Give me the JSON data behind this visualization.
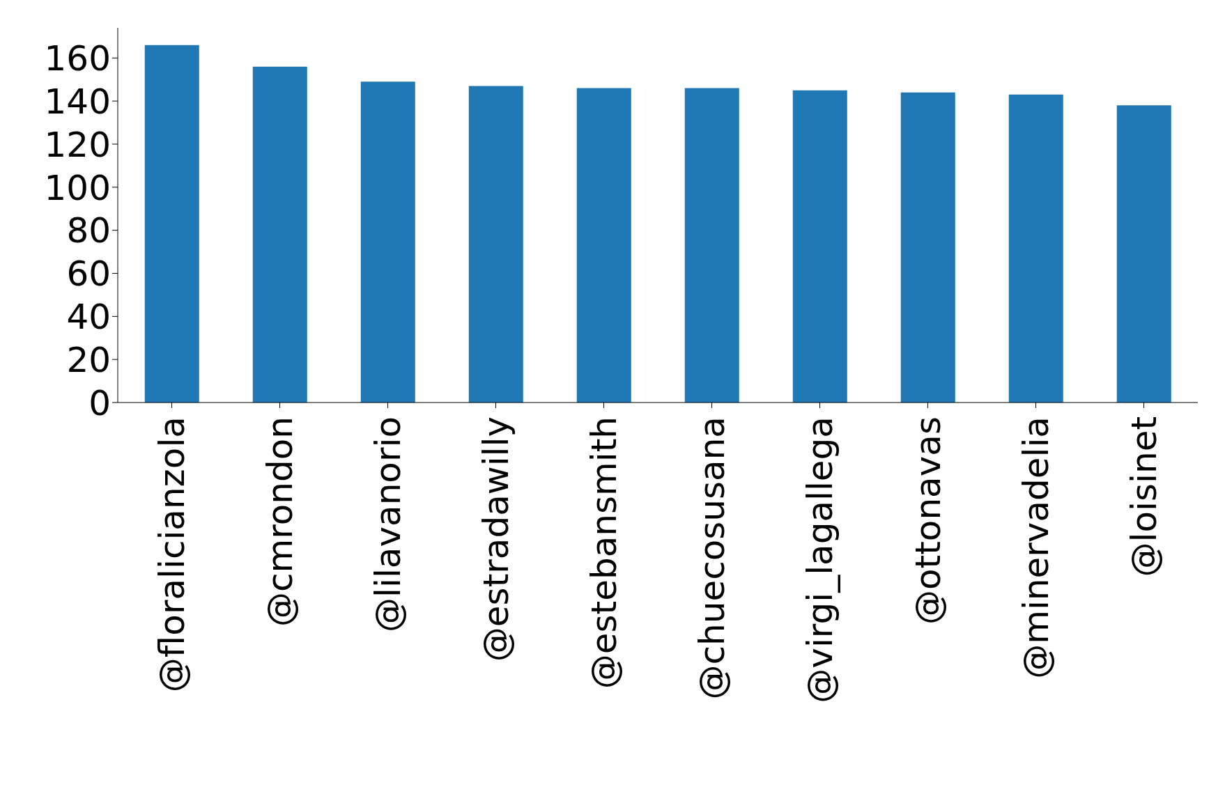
{
  "chart_data": {
    "type": "bar",
    "categories": [
      "@floralicianzola",
      "@cmrondon",
      "@lilavanorio",
      "@estradawilly",
      "@estebansmith",
      "@chuecosusana",
      "@virgi_lagallega",
      "@ottonavas",
      "@minervadelia",
      "@loisinet"
    ],
    "values": [
      166,
      156,
      149,
      147,
      146,
      146,
      145,
      144,
      143,
      138
    ],
    "color": "#1f77b4",
    "ylim": [
      0,
      174
    ],
    "yticks": [
      0,
      20,
      40,
      60,
      80,
      100,
      120,
      140,
      160
    ],
    "grid": false
  }
}
